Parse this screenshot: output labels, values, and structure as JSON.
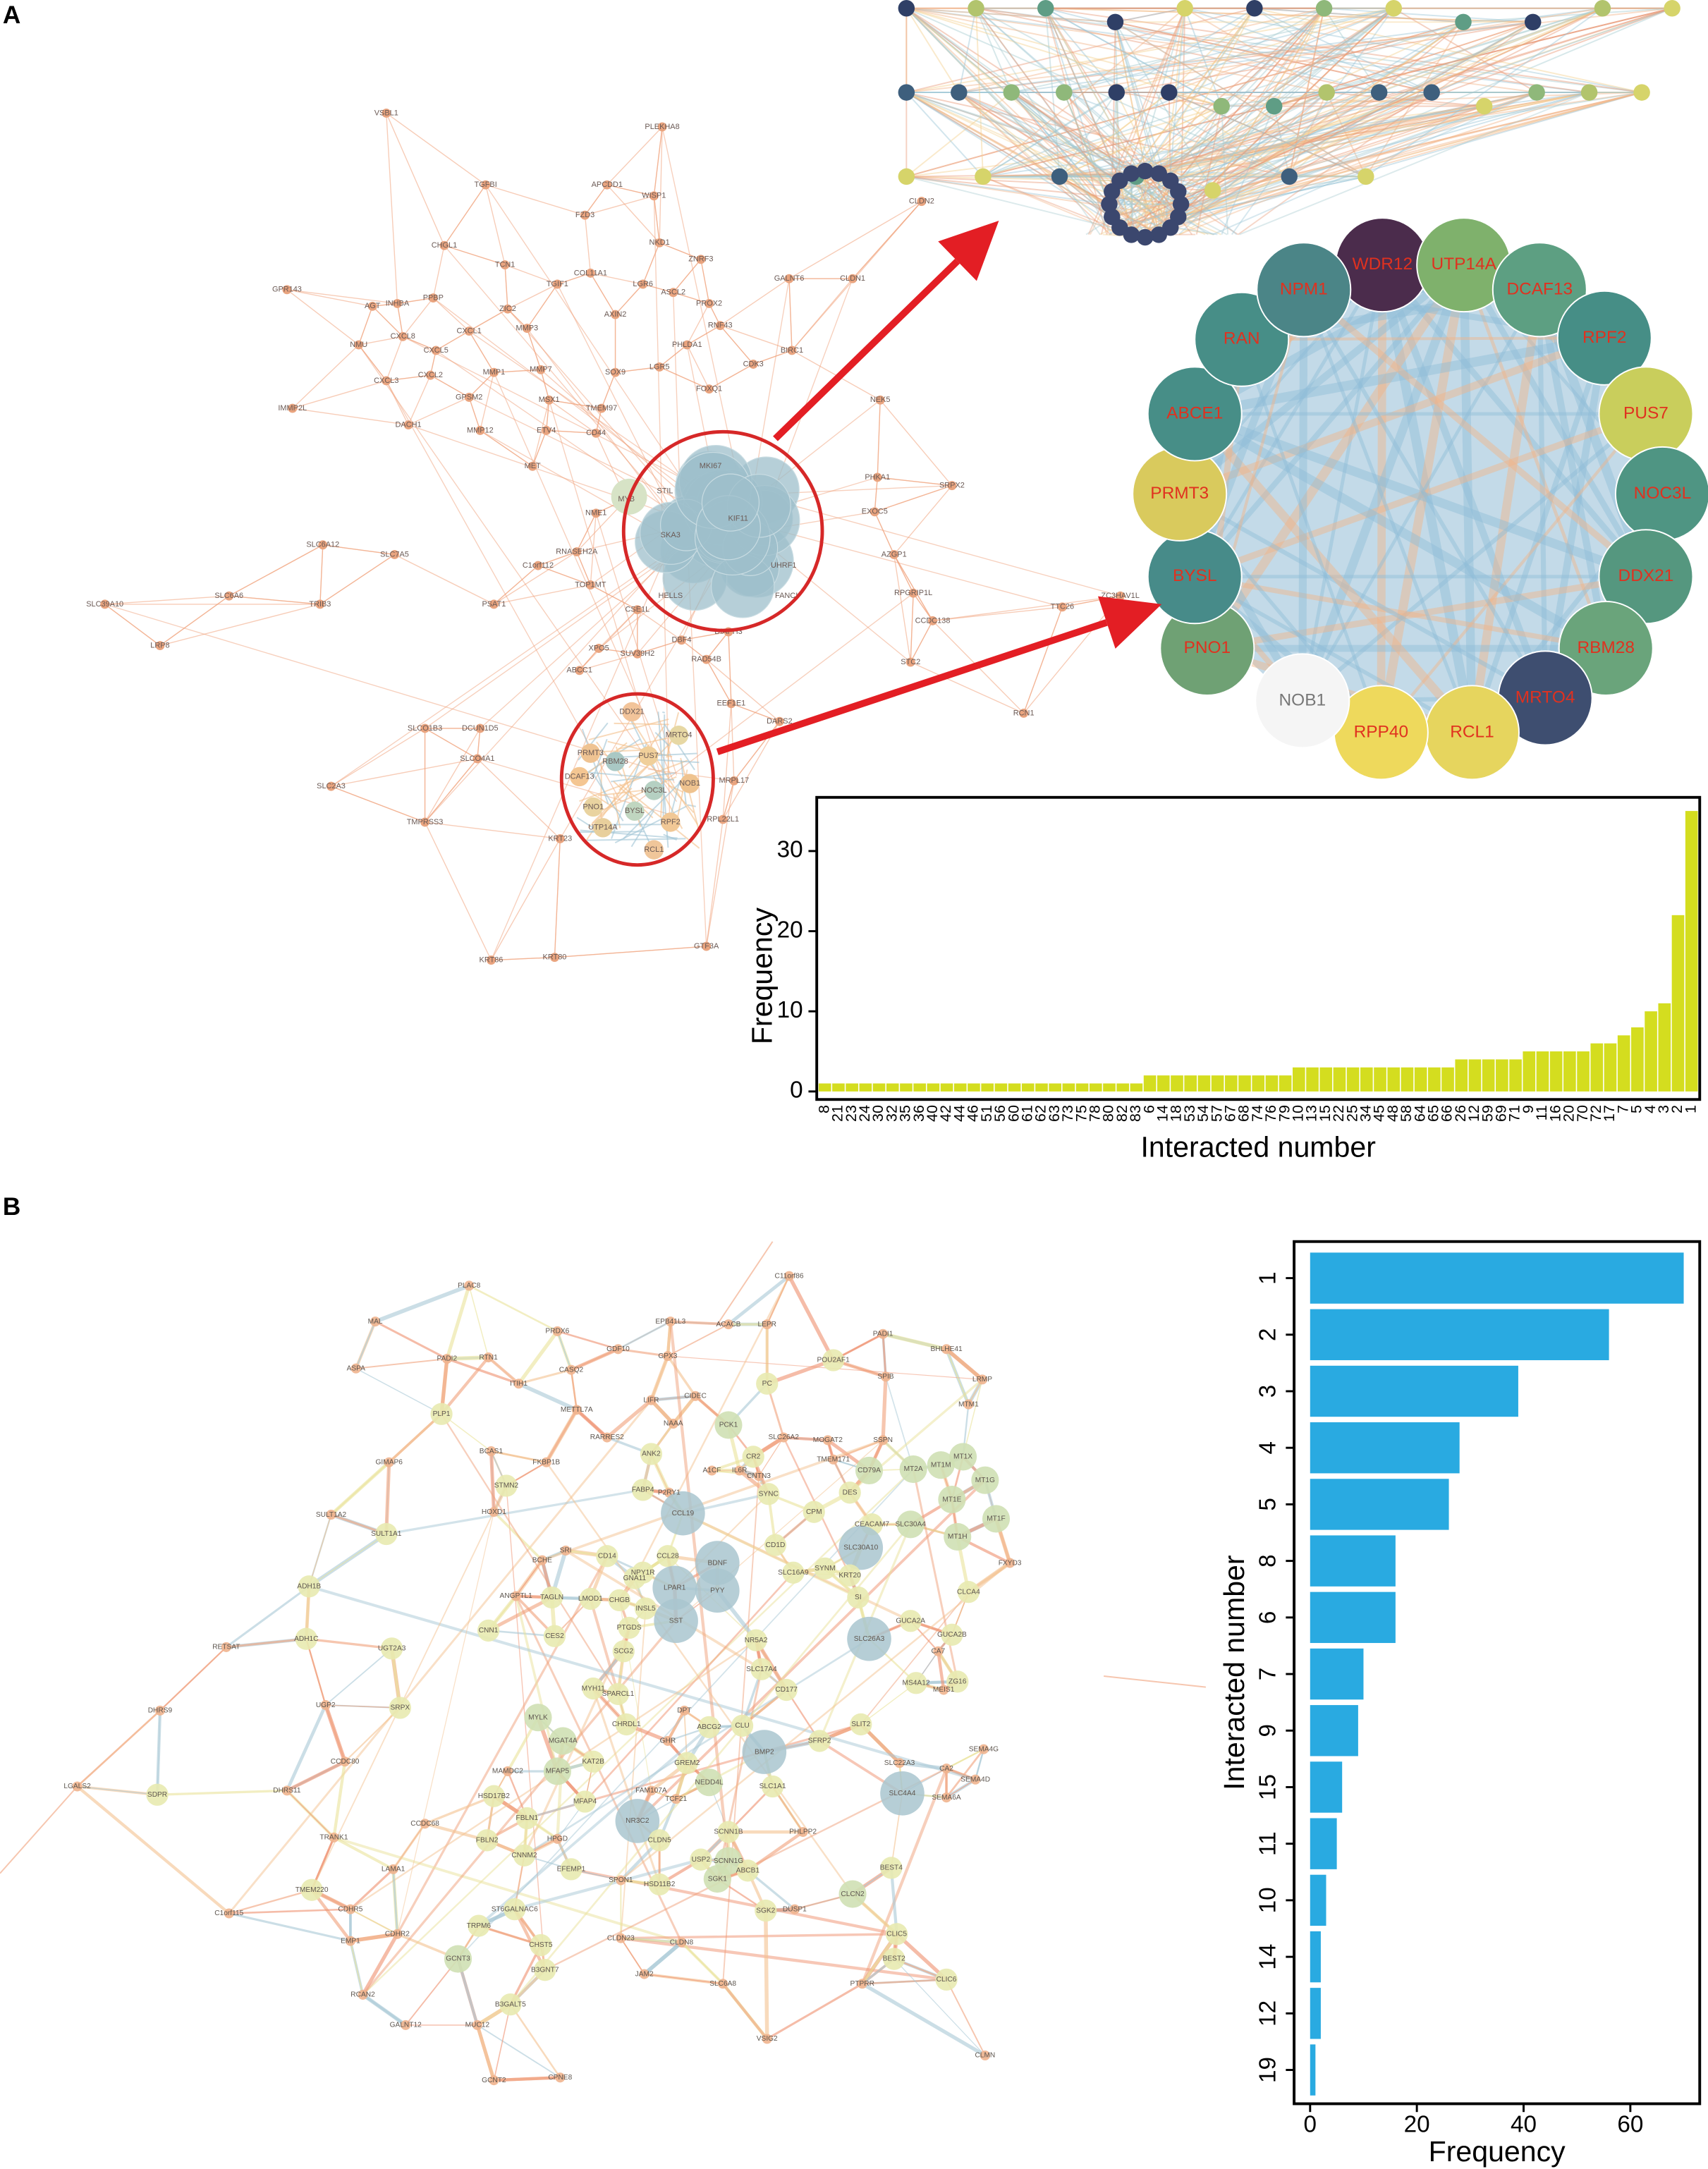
{
  "panels": [
    "A",
    "B"
  ],
  "network_a": {
    "nodes": [
      "VSBL1",
      "PLEKHA8",
      "TGFBI",
      "APCDD1",
      "WISP1",
      "FZD3",
      "CHGL1",
      "TCN1",
      "NKD1",
      "ZNRF3",
      "GPR143",
      "INHBA",
      "PPBP",
      "COL11A1",
      "TGIF1",
      "LGR6",
      "ASCL2",
      "PROX2",
      "GALNT6",
      "CLDN1",
      "AGT",
      "ZIC2",
      "AXIN2",
      "CXCL1",
      "RNF43",
      "MMP3",
      "PHLDA1",
      "NMU",
      "CXCL8",
      "CXCL5",
      "CXCL3",
      "CXCL2",
      "MMP1",
      "MMP7",
      "SOX9",
      "LGR5",
      "CDK3",
      "BIRC1",
      "IMMP2L",
      "GPSM2",
      "FOXQ1",
      "DACH1",
      "MMP12",
      "MSX1",
      "TMEM97",
      "NEK5",
      "ETV4",
      "CD44",
      "MET",
      "PHKA1",
      "SRPX2",
      "EXOC5",
      "SLC6A12",
      "SLC7A5",
      "AZGP1",
      "C1orf112",
      "SLC39A10",
      "SLC6A6",
      "TRIB3",
      "PSAT1",
      "RPGRIP1L",
      "TTC26",
      "ZC3HAV1L",
      "CCDC138",
      "LRP8",
      "XPO5",
      "SUV39H2",
      "STC2",
      "RAD54B",
      "ABCC1",
      "EEF1E1",
      "DARS2",
      "RCN1",
      "SLCO1B3",
      "DCUN1D5",
      "SLCO4A1",
      "MRPL17",
      "SLC2A3",
      "TMPRSS3",
      "RPL22L1",
      "KRT23",
      "KRT80",
      "KRT86",
      "GTF3A",
      "CLDN2",
      "NME1",
      "RNASEH2A",
      "TOP1MT",
      "CSE1L",
      "DBF4",
      "DIAPH3",
      "MYB"
    ],
    "cluster1": [
      "MKI67",
      "STIL",
      "KIF11",
      "SKA3",
      "UHRF1",
      "HELLS",
      "FANCI"
    ],
    "cluster2": [
      "DDX21",
      "MRTO4",
      "PRMT3",
      "RBM28",
      "PUS7",
      "DCAF13",
      "NOC3L",
      "NOB1",
      "PNO1",
      "BYSL",
      "RPF2",
      "UTP14A",
      "RCL1"
    ]
  },
  "ring": {
    "nodes": [
      {
        "label": "WDR12",
        "color": "#4b2c4c"
      },
      {
        "label": "UTP14A",
        "color": "#7fb16c"
      },
      {
        "label": "DCAF13",
        "color": "#5d9f82"
      },
      {
        "label": "RPF2",
        "color": "#468e86"
      },
      {
        "label": "PUS7",
        "color": "#c9ce5c"
      },
      {
        "label": "NOC3L",
        "color": "#4f9583"
      },
      {
        "label": "DDX21",
        "color": "#55977f"
      },
      {
        "label": "RBM28",
        "color": "#6aa47b"
      },
      {
        "label": "MRTO4",
        "color": "#3e4e70"
      },
      {
        "label": "RCL1",
        "color": "#e6d55e"
      },
      {
        "label": "RPP40",
        "color": "#eed95c"
      },
      {
        "label": "NOB1",
        "color": "#f5f5f5"
      },
      {
        "label": "PNO1",
        "color": "#6fa174"
      },
      {
        "label": "BYSL",
        "color": "#478b89"
      },
      {
        "label": "PRMT3",
        "color": "#d9ca5d"
      },
      {
        "label": "ABCE1",
        "color": "#478e87"
      },
      {
        "label": "RAN",
        "color": "#478e87"
      },
      {
        "label": "NPM1",
        "color": "#4b8587"
      }
    ]
  },
  "network_b": {
    "nodes": [
      "PLAC8",
      "C11orf86",
      "MAL",
      "PRDX6",
      "EPB41L3",
      "ACACB",
      "LEPR",
      "PADI1",
      "BHLHE41",
      "PADI2",
      "RTN1",
      "CASQ2",
      "GDF10",
      "GPX3",
      "ASPA",
      "POU2AF1",
      "SPIB",
      "LRMP",
      "PLP1",
      "ITIH1",
      "LIFR",
      "CIDEC",
      "PC",
      "MTM1",
      "METTL7A",
      "NAAA",
      "PCK1",
      "SLC26A2",
      "MOGAT2",
      "SSPN",
      "RARRES2",
      "BCAS1",
      "ANK2",
      "CR2",
      "GIMAP6",
      "FKBP1B",
      "TMEM171",
      "CD79A",
      "MT2A",
      "MT1M",
      "MT1X",
      "A1CF",
      "IL6R",
      "CNTN3",
      "MT1G",
      "STMN2",
      "FABP4",
      "P2RY1",
      "SYNC",
      "DES",
      "MT1E",
      "HOXD1",
      "SULT1A2",
      "CCL19",
      "CPM",
      "MT1F",
      "CEACAM7",
      "SLC30A4",
      "SULT1A1",
      "MT1H",
      "CD1D",
      "SLC30A10",
      "SRI",
      "CD14",
      "CCL28",
      "BDNF",
      "BCHE",
      "FXYD3",
      "SYNM",
      "NPY1R",
      "SLC16A9",
      "KRT20",
      "GNA11",
      "ADH1B",
      "LPAR1",
      "PYY",
      "CLCA4",
      "ANGPTL1",
      "TAGLN",
      "SI",
      "LMOD1",
      "CHGB",
      "INSL5",
      "SST",
      "GUCA2A",
      "PTGDS",
      "CNN1",
      "GUCA2B",
      "CES2",
      "ADH1C",
      "NR5A2",
      "SLC26A3",
      "RETSAT",
      "UGT2A3",
      "SCG2",
      "CA7",
      "SLC17A4",
      "ZG16",
      "MS4A12",
      "MYH11",
      "MEIS1",
      "CD177",
      "SPARCL1",
      "DPT",
      "UGP2",
      "SRPX",
      "DHRS9",
      "MYLK",
      "CHRDL1",
      "SLIT2",
      "CLU",
      "ABCG2",
      "GHR",
      "MGAT4A",
      "SFRP2",
      "SEMA4G",
      "BMP2",
      "CCDC80",
      "KAT2B",
      "GREM2",
      "SLC22A3",
      "CA2",
      "MAMDC2",
      "MFAP5",
      "SEMA4D",
      "NEDD4L",
      "LGALS2",
      "SLC1A1",
      "DHRS11",
      "FAM107A",
      "SLC4A4",
      "SDPR",
      "HSD17B2",
      "SEMA6A",
      "TCF21",
      "MFAP4",
      "FBLN1",
      "NR3C2",
      "CCDC68",
      "PHLPP2",
      "SCNN1B",
      "TRANK1",
      "HPGD",
      "CLDN5",
      "FBLN2",
      "CNNM2",
      "USP2",
      "SCNN1G",
      "BEST4",
      "EFEMP1",
      "LAMA1",
      "ABCB1",
      "SGK1",
      "SPON1",
      "HSD11B2",
      "TMEM220",
      "CLCN2",
      "ST6GALNAC6",
      "CDHR5",
      "SGK2",
      "DUSP1",
      "C1orf115",
      "TRPM6",
      "CDHR2",
      "CLIC5",
      "CLDN23",
      "EMP1",
      "CLDN8",
      "CHST5",
      "GCNT3",
      "BEST2",
      "B3GNT7",
      "JAM2",
      "CLIC6",
      "PTPRR",
      "SLC6A8",
      "RCAN2",
      "B3GALT5",
      "GALNT12",
      "MUC12",
      "VSIG2",
      "CLMN",
      "CPNE8",
      "GCNT2"
    ]
  },
  "chart_data": [
    {
      "type": "bar",
      "xlabel": "Interacted number",
      "ylabel": "Frequency",
      "categories": [
        "8",
        "21",
        "23",
        "24",
        "30",
        "32",
        "35",
        "36",
        "40",
        "42",
        "44",
        "46",
        "51",
        "56",
        "60",
        "61",
        "62",
        "63",
        "73",
        "75",
        "78",
        "80",
        "82",
        "83",
        "6",
        "14",
        "18",
        "53",
        "54",
        "57",
        "67",
        "68",
        "74",
        "76",
        "79",
        "10",
        "13",
        "15",
        "22",
        "25",
        "34",
        "45",
        "48",
        "58",
        "64",
        "65",
        "66",
        "26",
        "12",
        "59",
        "69",
        "71",
        "9",
        "11",
        "16",
        "20",
        "70",
        "72",
        "17",
        "7",
        "5",
        "4",
        "3",
        "2",
        "1"
      ],
      "values": [
        1,
        1,
        1,
        1,
        1,
        1,
        1,
        1,
        1,
        1,
        1,
        1,
        1,
        1,
        1,
        1,
        1,
        1,
        1,
        1,
        1,
        1,
        1,
        1,
        2,
        2,
        2,
        2,
        2,
        2,
        2,
        2,
        2,
        2,
        2,
        3,
        3,
        3,
        3,
        3,
        3,
        3,
        3,
        3,
        3,
        3,
        3,
        4,
        4,
        4,
        4,
        4,
        5,
        5,
        5,
        5,
        5,
        6,
        6,
        7,
        8,
        10,
        11,
        22,
        35
      ],
      "color": "#d4dd1f",
      "ylim": [
        -1,
        36.7
      ],
      "yticks": [
        0,
        10,
        20,
        30
      ]
    },
    {
      "type": "barh",
      "xlabel": "Frequency",
      "ylabel": "Interacted number",
      "categories": [
        "1",
        "2",
        "3",
        "4",
        "5",
        "8",
        "6",
        "7",
        "9",
        "15",
        "11",
        "10",
        "14",
        "12",
        "19"
      ],
      "values": [
        70,
        56,
        39,
        28,
        26,
        16,
        16,
        10,
        9,
        6,
        5,
        3,
        2,
        2,
        1
      ],
      "color": "#29aae1",
      "xlim": [
        -3,
        73
      ],
      "xticks": [
        0,
        20,
        40,
        60
      ]
    }
  ]
}
